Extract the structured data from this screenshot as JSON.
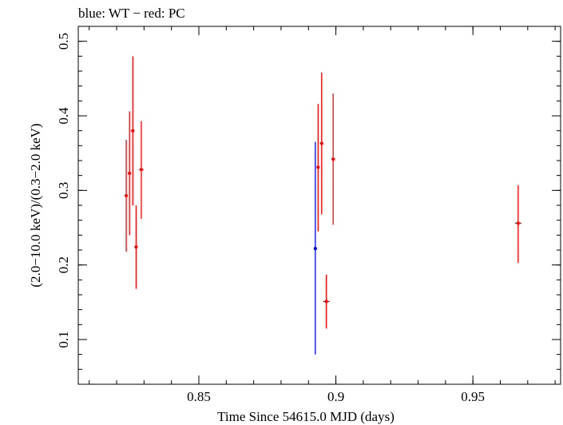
{
  "chart_data": {
    "type": "scatter",
    "title": "blue: WT − red: PC",
    "xlabel": "Time Since 54615.0 MJD (days)",
    "ylabel": "(2.0−10.0 keV)/(0.3−2.0 keV)",
    "xlim": [
      0.806,
      0.982
    ],
    "ylim": [
      0.04,
      0.52
    ],
    "x_major_ticks": [
      0.85,
      0.9,
      0.95
    ],
    "x_tick_labels": [
      "0.85",
      "0.9",
      "0.95"
    ],
    "x_minor_step": 0.01,
    "y_major_ticks": [
      0.1,
      0.2,
      0.3,
      0.4,
      0.5
    ],
    "y_tick_labels": [
      "0.1",
      "0.2",
      "0.3",
      "0.4",
      "0.5"
    ],
    "y_minor_step": 0.02,
    "series": [
      {
        "name": "WT",
        "color": "#0000ff",
        "points": [
          {
            "x": 0.8925,
            "y": 0.222,
            "ylow": 0.08,
            "yhigh": 0.365,
            "xerr": 0.0003
          }
        ]
      },
      {
        "name": "PC",
        "color": "#ff0000",
        "points": [
          {
            "x": 0.8235,
            "y": 0.293,
            "ylow": 0.218,
            "yhigh": 0.368,
            "xerr": 0.0006
          },
          {
            "x": 0.8247,
            "y": 0.323,
            "ylow": 0.24,
            "yhigh": 0.406,
            "xerr": 0.0006
          },
          {
            "x": 0.8259,
            "y": 0.38,
            "ylow": 0.28,
            "yhigh": 0.48,
            "xerr": 0.0006
          },
          {
            "x": 0.8271,
            "y": 0.224,
            "ylow": 0.168,
            "yhigh": 0.28,
            "xerr": 0.0006
          },
          {
            "x": 0.829,
            "y": 0.328,
            "ylow": 0.262,
            "yhigh": 0.393,
            "xerr": 0.0008
          },
          {
            "x": 0.8935,
            "y": 0.331,
            "ylow": 0.245,
            "yhigh": 0.416,
            "xerr": 0.0006
          },
          {
            "x": 0.8948,
            "y": 0.363,
            "ylow": 0.268,
            "yhigh": 0.458,
            "xerr": 0.0006
          },
          {
            "x": 0.8965,
            "y": 0.151,
            "ylow": 0.115,
            "yhigh": 0.187,
            "xerr": 0.0012
          },
          {
            "x": 0.899,
            "y": 0.342,
            "ylow": 0.254,
            "yhigh": 0.43,
            "xerr": 0.0006
          },
          {
            "x": 0.9665,
            "y": 0.256,
            "ylow": 0.203,
            "yhigh": 0.307,
            "xerr": 0.0012
          }
        ]
      }
    ]
  }
}
